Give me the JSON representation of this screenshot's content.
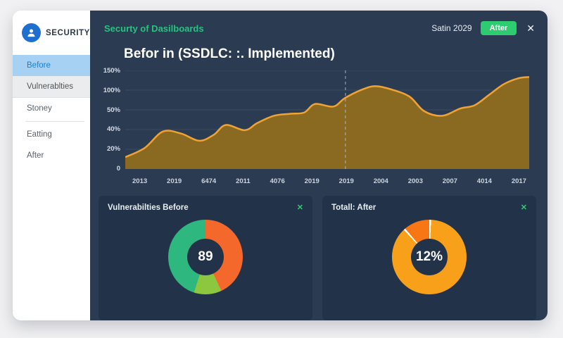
{
  "brand": {
    "name": "SECURITY",
    "logo_icon": "user-icon"
  },
  "sidebar": {
    "items": [
      {
        "label": "Before",
        "state": "active"
      },
      {
        "label": "Vulnerablties",
        "state": "highlighted"
      },
      {
        "label": "Stoney",
        "state": "normal"
      },
      {
        "label": "Eatting",
        "state": "normal"
      },
      {
        "label": "After",
        "state": "normal"
      }
    ]
  },
  "header": {
    "subtitle": "Securty of Dasilboards",
    "period_label": "Satin 2029",
    "action_button_label": "After",
    "close_icon": "✕"
  },
  "main": {
    "title": "Befor in (SSDLC: :. Implemented)"
  },
  "colors": {
    "accent_green": "#2ecc71",
    "main_bg": "#2b3c52",
    "card_bg": "#223349",
    "sidebar_active_bg": "#a7d1f3",
    "sidebar_active_text": "#1b7fd0"
  },
  "cards": [
    {
      "title": "Vulnerabilties Before",
      "close_icon": "✕"
    },
    {
      "title": "Totall: After",
      "close_icon": "✕"
    }
  ],
  "chart_data": [
    {
      "type": "area",
      "title": "Befor in (SSDLC: :. Implemented)",
      "x_tick_labels": [
        "2013",
        "2019",
        "6474",
        "2011",
        "4076",
        "2019",
        "2019",
        "2004",
        "2003",
        "2007",
        "4014",
        "2017"
      ],
      "y_tick_labels": [
        "150%",
        "100%",
        "50%",
        "40%",
        "20%",
        "0"
      ],
      "ylim": [
        0,
        150
      ],
      "grid": true,
      "legend": "none",
      "dashed_marker_x_fraction": 0.545,
      "line_color": "#f0a335",
      "fill_color": "#8d6a20",
      "grid_color": "#3a4b61",
      "dash_color": "#b9c4cf",
      "points": [
        [
          0.0,
          18
        ],
        [
          0.048,
          32
        ],
        [
          0.093,
          57
        ],
        [
          0.138,
          54
        ],
        [
          0.183,
          43
        ],
        [
          0.219,
          52
        ],
        [
          0.249,
          67
        ],
        [
          0.296,
          59
        ],
        [
          0.327,
          70
        ],
        [
          0.368,
          81
        ],
        [
          0.408,
          84
        ],
        [
          0.443,
          86
        ],
        [
          0.47,
          99
        ],
        [
          0.515,
          95
        ],
        [
          0.544,
          108
        ],
        [
          0.587,
          121
        ],
        [
          0.619,
          126
        ],
        [
          0.659,
          121
        ],
        [
          0.704,
          110
        ],
        [
          0.74,
          88
        ],
        [
          0.785,
          81
        ],
        [
          0.829,
          92
        ],
        [
          0.865,
          97
        ],
        [
          0.901,
          113
        ],
        [
          0.937,
          129
        ],
        [
          0.973,
          138
        ],
        [
          1.0,
          140
        ]
      ]
    },
    {
      "type": "pie",
      "title": "Vulnerabilties Before",
      "center_label": "89",
      "separators": false,
      "segments": [
        {
          "color": "#f4682c",
          "value": 43
        },
        {
          "color": "#8dc63f",
          "value": 12
        },
        {
          "color": "#2eb87f",
          "value": 45
        }
      ]
    },
    {
      "type": "pie",
      "title": "Totall: After",
      "center_label": "12%",
      "separators": true,
      "segments": [
        {
          "color": "#f9a01b",
          "value": 88
        },
        {
          "color": "#f87613",
          "value": 12
        }
      ]
    }
  ]
}
